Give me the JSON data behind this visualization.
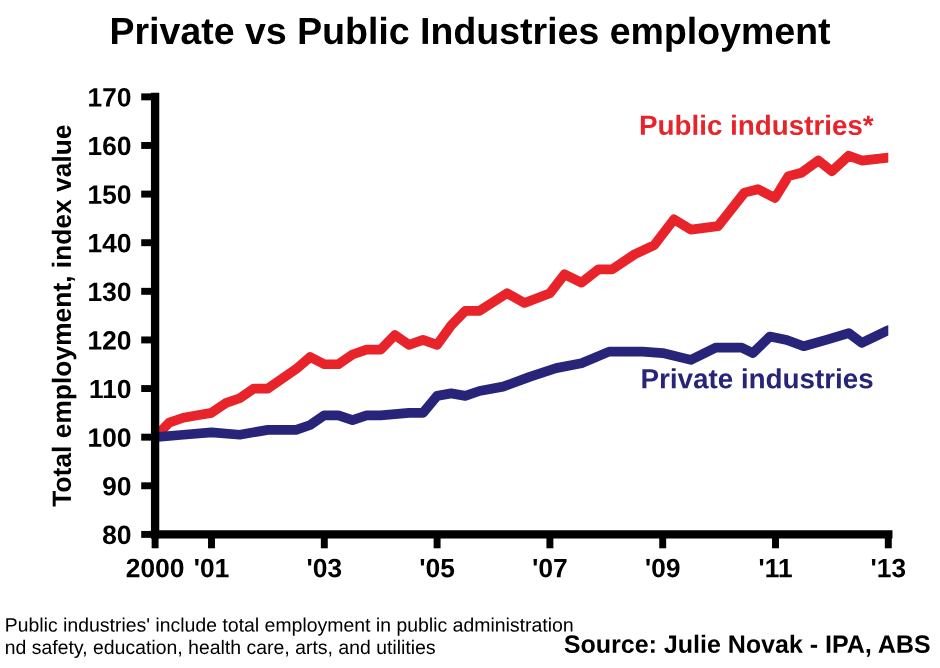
{
  "chart_data": {
    "type": "line",
    "title": "Private vs Public Industries employment",
    "ylabel": "Total employment, index value",
    "xlim": [
      2000,
      2013
    ],
    "xticks": [
      {
        "value": 2000,
        "label": "2000"
      },
      {
        "value": 2001,
        "label": "'01"
      },
      {
        "value": 2003,
        "label": "'03"
      },
      {
        "value": 2005,
        "label": "'05"
      },
      {
        "value": 2007,
        "label": "'07"
      },
      {
        "value": 2009,
        "label": "'09"
      },
      {
        "value": 2011,
        "label": "'11"
      },
      {
        "value": 2013,
        "label": "'13"
      }
    ],
    "ylim": [
      80,
      170
    ],
    "yticks": [
      80,
      90,
      100,
      110,
      120,
      130,
      140,
      150,
      160,
      170
    ],
    "grid": false,
    "legend": false,
    "marker": "none",
    "line_style": "solid",
    "series": [
      {
        "name": "Public industries*",
        "color": "#e8232a",
        "x": [
          2000,
          2000.25,
          2000.5,
          2000.75,
          2001,
          2001.25,
          2001.5,
          2001.75,
          2002,
          2002.25,
          2002.5,
          2002.75,
          2003,
          2003.25,
          2003.5,
          2003.75,
          2004,
          2004.25,
          2004.5,
          2004.75,
          2005,
          2005.25,
          2005.5,
          2005.75,
          2006.24,
          2006.55,
          2007,
          2007.26,
          2007.56,
          2007.86,
          2008.1,
          2008.5,
          2008.85,
          2009.2,
          2009.5,
          2009.98,
          2010.45,
          2010.69,
          2010.99,
          2011.23,
          2011.46,
          2011.76,
          2012,
          2012.3,
          2012.53,
          2013
        ],
        "values": [
          100,
          103,
          104,
          104.5,
          105,
          107,
          108,
          110,
          110,
          112,
          114,
          116.5,
          115,
          115,
          117,
          118,
          118,
          121,
          119,
          120,
          119,
          123,
          126,
          126,
          129.6,
          127.6,
          129.6,
          133.5,
          131.8,
          134.5,
          134.5,
          137.6,
          139.5,
          144.8,
          142.7,
          143.4,
          150.3,
          151,
          149.2,
          153.7,
          154.4,
          156.9,
          154.7,
          157.9,
          156.9,
          157.5
        ]
      },
      {
        "name": "Private industries",
        "color": "#27247a",
        "x": [
          2000,
          2000.5,
          2001,
          2001.5,
          2002,
          2002.5,
          2002.75,
          2003,
          2003.25,
          2003.5,
          2003.75,
          2004,
          2004.5,
          2004.75,
          2005,
          2005.25,
          2005.5,
          2005.75,
          2006.17,
          2006.64,
          2007.11,
          2007.56,
          2008.05,
          2008.64,
          2009,
          2009.5,
          2009.94,
          2010.4,
          2010.6,
          2010.9,
          2011.2,
          2011.5,
          2011.9,
          2012.3,
          2012.53,
          2013
        ],
        "values": [
          100,
          100.5,
          101,
          100.5,
          101.5,
          101.5,
          102.5,
          104.5,
          104.5,
          103.5,
          104.5,
          104.5,
          105,
          105,
          108.5,
          109,
          108.5,
          109.5,
          110.4,
          112.4,
          114.2,
          115.2,
          117.6,
          117.6,
          117.3,
          115.9,
          118.4,
          118.4,
          117.3,
          120.7,
          120,
          118.7,
          120,
          121.4,
          119.4,
          122
        ]
      }
    ],
    "annotations": [
      "Public industries' include total employment in public administration\nnd safety, education, health care, arts, and utilities",
      "Source: Julie Novak - IPA, ABS"
    ]
  }
}
